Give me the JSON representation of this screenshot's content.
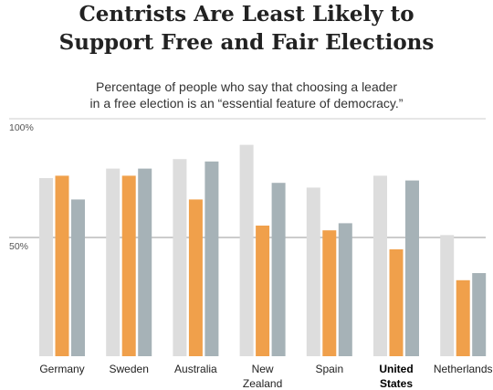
{
  "title_lines": [
    "Centrists Are Least Likely to",
    "Support Free and Fair Elections"
  ],
  "subtitle_lines": [
    "Percentage of people who say that choosing a leader",
    "in a free election is an “essential feature of democracy.”"
  ],
  "chart_data": {
    "type": "bar",
    "title": "Centrists Are Least Likely to Support Free and Fair Elections",
    "subtitle": "Percentage of people who say that choosing a leader in a free election is an “essential feature of democracy.”",
    "ylim": [
      0,
      100
    ],
    "yticks": [
      {
        "value": 100,
        "label": "100%"
      },
      {
        "value": 50,
        "label": "50%"
      }
    ],
    "grid": true,
    "categories": [
      {
        "lines": [
          "Germany"
        ],
        "bold": false
      },
      {
        "lines": [
          "Sweden"
        ],
        "bold": false
      },
      {
        "lines": [
          "Australia"
        ],
        "bold": false
      },
      {
        "lines": [
          "New",
          "Zealand"
        ],
        "bold": false
      },
      {
        "lines": [
          "Spain"
        ],
        "bold": false
      },
      {
        "lines": [
          "United",
          "States"
        ],
        "bold": true
      },
      {
        "lines": [
          "Netherlands"
        ],
        "bold": false
      }
    ],
    "series": [
      {
        "color": "#dddddd",
        "values": [
          75,
          79,
          83,
          89,
          71,
          76,
          51
        ]
      },
      {
        "color": "#f0a04b",
        "values": [
          76,
          76,
          66,
          55,
          53,
          45,
          32
        ]
      },
      {
        "color": "#a6b2b7",
        "values": [
          66,
          79,
          82,
          73,
          56,
          74,
          35
        ]
      }
    ]
  }
}
